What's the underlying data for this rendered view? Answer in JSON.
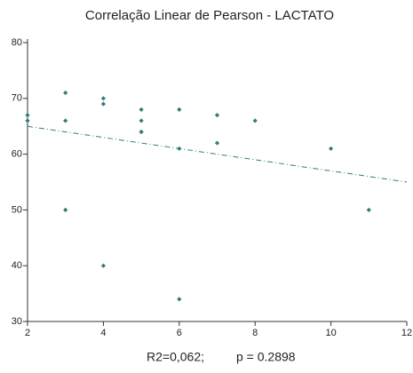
{
  "chart_data": {
    "type": "scatter",
    "title": "Correlação Linear de Pearson - LACTATO",
    "xlim": [
      2,
      12
    ],
    "xticks": [
      2,
      4,
      6,
      8,
      10,
      12
    ],
    "ylim": [
      30,
      80
    ],
    "yticks": [
      30,
      40,
      50,
      60,
      70,
      80
    ],
    "grid": false,
    "series": [
      {
        "type": "scatter",
        "color": "#2f7d7a",
        "x": [
          2,
          2,
          3,
          3,
          3,
          4,
          4,
          4,
          5,
          5,
          5,
          5,
          6,
          6,
          6,
          7,
          7,
          8,
          10,
          11
        ],
        "values": [
          67,
          66,
          71,
          66,
          50,
          70,
          69,
          40,
          68,
          66,
          64,
          64,
          68,
          61,
          34,
          67,
          62,
          66,
          61,
          50
        ]
      },
      {
        "type": "line",
        "color": "#2f7d7a",
        "x": [
          2,
          12
        ],
        "values": [
          65,
          55
        ]
      }
    ],
    "annotations": [
      "R2=0,062;",
      "p = 0.2898"
    ]
  }
}
